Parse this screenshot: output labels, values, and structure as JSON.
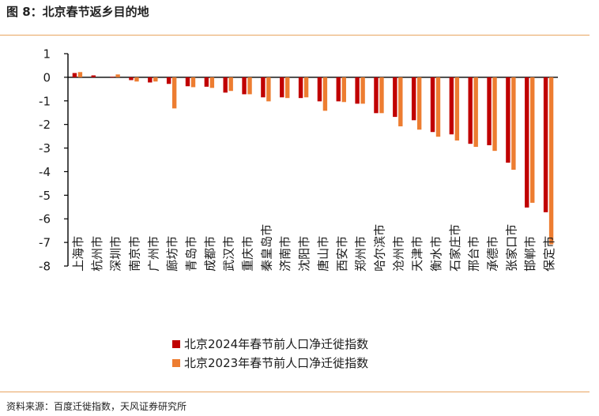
{
  "header": {
    "title": "图 8：北京春节返乡目的地"
  },
  "footer": {
    "source": "资料来源：百度迁徙指数，天风证券研究所"
  },
  "colors": {
    "series_2024": "#c00000",
    "series_2023": "#ed7d31",
    "rule": "#e8a560"
  },
  "chart_data": {
    "type": "bar",
    "title": "",
    "xlabel": "",
    "ylabel": "",
    "ylim": [
      -8,
      1
    ],
    "yticks": [
      1,
      0,
      -1,
      -2,
      -3,
      -4,
      -5,
      -6,
      -7,
      -8
    ],
    "grid": false,
    "legend_position": "bottom-left",
    "categories": [
      "上海市",
      "杭州市",
      "深圳市",
      "南京市",
      "广州市",
      "廊坊市",
      "青岛市",
      "成都市",
      "武汉市",
      "重庆市",
      "秦皇岛市",
      "济南市",
      "沈阳市",
      "唐山市",
      "西安市",
      "郑州市",
      "哈尔滨市",
      "沧州市",
      "天津市",
      "衡水市",
      "石家庄市",
      "邢台市",
      "承德市",
      "张家口市",
      "邯郸市",
      "保定市"
    ],
    "series": [
      {
        "name": "北京2024年春节前人口净迁徙指数",
        "values": [
          0.18,
          0.08,
          0.02,
          -0.12,
          -0.22,
          -0.28,
          -0.38,
          -0.4,
          -0.65,
          -0.72,
          -0.85,
          -0.85,
          -0.88,
          -1.02,
          -1.02,
          -1.12,
          -1.52,
          -1.68,
          -1.82,
          -2.32,
          -2.42,
          -2.82,
          -2.88,
          -3.62,
          -5.52,
          -5.72
        ]
      },
      {
        "name": "北京2023年春节前人口净迁徙指数",
        "values": [
          0.22,
          0.0,
          0.12,
          -0.18,
          -0.18,
          -1.32,
          -0.42,
          -0.45,
          -0.58,
          -0.72,
          -1.02,
          -0.88,
          -0.85,
          -1.42,
          -1.05,
          -1.12,
          -1.52,
          -2.08,
          -2.22,
          -2.52,
          -2.68,
          -2.95,
          -3.12,
          -3.92,
          -5.32,
          -7.08
        ]
      }
    ]
  }
}
